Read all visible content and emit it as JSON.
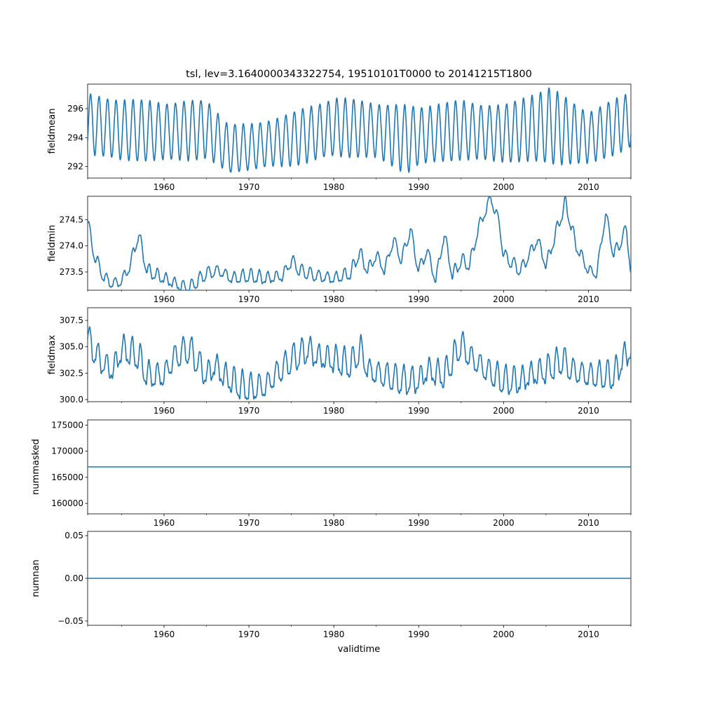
{
  "chart_data": {
    "type": "line",
    "title": "tsl, lev=3.1640000343322754, 19510101T0000 to 20141215T1800",
    "xlabel": "validtime",
    "xlim": [
      1951.0,
      2015.0
    ],
    "x_ticks": [
      1960,
      1970,
      1980,
      1990,
      2000,
      2010
    ],
    "x_tick_labels": [
      "1960",
      "1970",
      "1980",
      "1990",
      "2000",
      "2010"
    ],
    "series_color": "#1f77b4",
    "panels": [
      {
        "name": "fieldmean",
        "ylabel": "fieldmean",
        "ylim": [
          291.2,
          297.7
        ],
        "y_ticks": [
          292,
          294,
          296
        ],
        "y_tick_labels": [
          "292",
          "294",
          "296"
        ],
        "x": [
          1951.0,
          1955.0,
          1960.0,
          1965.0,
          1967.6,
          1970.0,
          1975.0,
          1980.0,
          1985.0,
          1988.6,
          1990.0,
          1995.0,
          2000.0,
          2005.4,
          2010.0,
          2015.0
        ],
        "seasonal_amplitude": [
          2.0,
          2.1,
          2.0,
          2.0,
          1.7,
          1.5,
          1.8,
          2.0,
          1.9,
          2.3,
          2.0,
          2.0,
          1.9,
          2.6,
          1.8,
          1.9
        ],
        "seasonal_center": [
          295.0,
          294.5,
          294.4,
          294.6,
          293.2,
          293.3,
          293.9,
          294.7,
          294.5,
          293.9,
          294.1,
          294.5,
          294.3,
          294.8,
          294.0,
          295.2
        ]
      },
      {
        "name": "fieldmin",
        "ylabel": "fieldmin",
        "ylim": [
          273.15,
          274.95
        ],
        "y_ticks": [
          273.5,
          274.0,
          274.5
        ],
        "y_tick_labels": [
          "273.5",
          "274.0",
          "274.5"
        ],
        "x": [
          1951.0,
          1951.5,
          1952.0,
          1953.0,
          1954.0,
          1955.0,
          1956.0,
          1957.0,
          1958.0,
          1960.0,
          1962.0,
          1963.0,
          1965.0,
          1966.5,
          1968.0,
          1970.0,
          1972.0,
          1974.0,
          1975.0,
          1976.0,
          1978.0,
          1980.0,
          1982.0,
          1983.0,
          1984.0,
          1985.0,
          1986.0,
          1987.0,
          1988.0,
          1989.0,
          1990.0,
          1991.0,
          1992.0,
          1993.0,
          1994.0,
          1995.0,
          1996.0,
          1997.0,
          1998.5,
          1999.5,
          2000.0,
          2002.0,
          2004.0,
          2005.0,
          2006.5,
          2007.3,
          2008.5,
          2010.0,
          2011.0,
          2012.0,
          2013.0,
          2014.5,
          2015.0
        ],
        "y": [
          274.45,
          274.0,
          273.7,
          273.35,
          273.25,
          273.3,
          273.6,
          274.2,
          273.5,
          273.35,
          273.2,
          273.17,
          273.45,
          273.5,
          273.35,
          273.4,
          273.35,
          273.4,
          273.7,
          273.5,
          273.4,
          273.35,
          273.45,
          273.85,
          273.5,
          273.8,
          273.5,
          274.1,
          273.7,
          274.3,
          273.5,
          273.9,
          273.3,
          274.2,
          273.4,
          273.7,
          273.6,
          274.3,
          274.9,
          274.4,
          273.8,
          273.5,
          274.1,
          273.6,
          274.4,
          274.8,
          274.0,
          273.5,
          273.45,
          274.6,
          273.8,
          274.3,
          273.45
        ],
        "seasonal_amplitude": 0.15
      },
      {
        "name": "fieldmax",
        "ylabel": "fieldmax",
        "ylim": [
          299.8,
          308.7
        ],
        "y_ticks": [
          300.0,
          302.5,
          305.0,
          307.5
        ],
        "y_tick_labels": [
          "300.0",
          "302.5",
          "305.0",
          "307.5"
        ],
        "x": [
          1951.0,
          1952.0,
          1953.0,
          1954.0,
          1955.0,
          1956.0,
          1957.0,
          1958.0,
          1960.0,
          1961.0,
          1962.0,
          1963.0,
          1965.0,
          1966.0,
          1967.0,
          1969.0,
          1970.0,
          1972.0,
          1973.0,
          1975.0,
          1977.0,
          1978.0,
          1980.0,
          1982.0,
          1983.2,
          1984.0,
          1986.0,
          1988.0,
          1990.0,
          1991.0,
          1993.0,
          1995.0,
          1996.0,
          1998.0,
          2000.0,
          2002.0,
          2003.0,
          2005.0,
          2006.0,
          2007.0,
          2008.0,
          2010.0,
          2011.0,
          2013.0,
          2014.0,
          2015.0
        ],
        "y": [
          305.5,
          304.0,
          303.0,
          302.5,
          304.5,
          304.2,
          303.8,
          302.0,
          302.0,
          303.5,
          304.2,
          304.5,
          302.0,
          303.0,
          302.0,
          301.0,
          300.8,
          301.0,
          302.0,
          303.5,
          304.5,
          303.8,
          303.5,
          303.0,
          304.5,
          302.5,
          302.0,
          301.5,
          301.5,
          302.5,
          302.0,
          305.0,
          303.8,
          302.5,
          301.5,
          301.5,
          302.0,
          302.5,
          303.0,
          303.5,
          302.5,
          302.0,
          302.0,
          302.0,
          303.5,
          304.5
        ],
        "seasonal_amplitude": 1.6
      },
      {
        "name": "nummasked",
        "ylabel": "nummasked",
        "ylim": [
          158000,
          176000
        ],
        "y_ticks": [
          160000,
          165000,
          170000,
          175000
        ],
        "y_tick_labels": [
          "160000",
          "165000",
          "170000",
          "175000"
        ],
        "x": [
          1951.0,
          2015.0
        ],
        "y": [
          167000,
          167000
        ]
      },
      {
        "name": "numnan",
        "ylabel": "numnan",
        "ylim": [
          -0.055,
          0.055
        ],
        "y_ticks": [
          -0.05,
          0.0,
          0.05
        ],
        "y_tick_labels": [
          "−0.05",
          "0.00",
          "0.05"
        ],
        "x": [
          1951.0,
          2015.0
        ],
        "y": [
          0.0,
          0.0
        ]
      }
    ]
  }
}
